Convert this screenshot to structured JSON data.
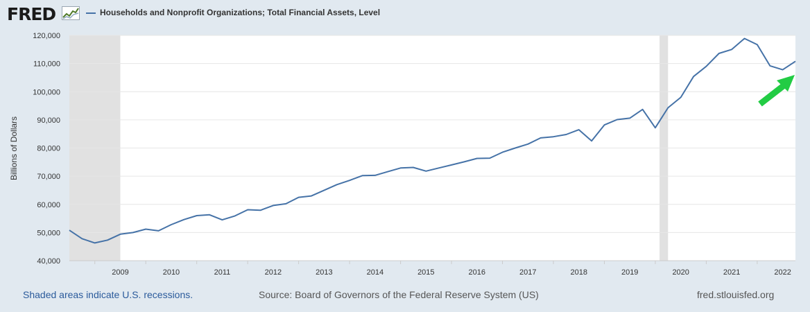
{
  "header": {
    "logo_text": "FRED",
    "logo_icon": "fred-line-graph-icon",
    "series_title": "Households and Nonprofit Organizations; Total Financial Assets, Level"
  },
  "footer": {
    "recession_note": "Shaded areas indicate U.S. recessions.",
    "source": "Source: Board of Governors of the Federal Reserve System (US)",
    "site": "fred.stlouisfed.org"
  },
  "annotation": {
    "icon": "green-arrow-icon",
    "color": "#22cc44"
  },
  "chart_data": {
    "type": "line",
    "title": "Households and Nonprofit Organizations; Total Financial Assets, Level",
    "ylabel": "Billions of Dollars",
    "xlabel": "",
    "ylim": [
      40000,
      120000
    ],
    "y_ticks": [
      40000,
      50000,
      60000,
      70000,
      80000,
      90000,
      100000,
      110000,
      120000
    ],
    "y_tick_labels": [
      "40,000",
      "50,000",
      "60,000",
      "70,000",
      "80,000",
      "90,000",
      "100,000",
      "110,000",
      "120,000"
    ],
    "x_ticks": [
      2009,
      2010,
      2011,
      2012,
      2013,
      2014,
      2015,
      2016,
      2017,
      2018,
      2019,
      2020,
      2021,
      2022
    ],
    "x_tick_labels": [
      "2009",
      "2010",
      "2011",
      "2012",
      "2013",
      "2014",
      "2015",
      "2016",
      "2017",
      "2018",
      "2019",
      "2020",
      "2021",
      "2022"
    ],
    "xlim": [
      2008.5,
      2022.75
    ],
    "grid": true,
    "line_color": "#4572a7",
    "recession_color": "#e1e1e1",
    "recessions": [
      [
        2008.5,
        2009.5
      ],
      [
        2020.0833,
        2020.25
      ]
    ],
    "series": [
      {
        "x": [
          "2008-07-01",
          "2008-10-01",
          "2009-01-01",
          "2009-04-01",
          "2009-07-01",
          "2009-10-01",
          "2010-01-01",
          "2010-04-01",
          "2010-07-01",
          "2010-10-01",
          "2011-01-01",
          "2011-04-01",
          "2011-07-01",
          "2011-10-01",
          "2012-01-01",
          "2012-04-01",
          "2012-07-01",
          "2012-10-01",
          "2013-01-01",
          "2013-04-01",
          "2013-07-01",
          "2013-10-01",
          "2014-01-01",
          "2014-04-01",
          "2014-07-01",
          "2014-10-01",
          "2015-01-01",
          "2015-04-01",
          "2015-07-01",
          "2015-10-01",
          "2016-01-01",
          "2016-04-01",
          "2016-07-01",
          "2016-10-01",
          "2017-01-01",
          "2017-04-01",
          "2017-07-01",
          "2017-10-01",
          "2018-01-01",
          "2018-04-01",
          "2018-07-01",
          "2018-10-01",
          "2019-01-01",
          "2019-04-01",
          "2019-07-01",
          "2019-10-01",
          "2020-01-01",
          "2020-04-01",
          "2020-07-01",
          "2020-10-01",
          "2021-01-01",
          "2021-04-01",
          "2021-07-01",
          "2021-10-01",
          "2022-01-01",
          "2022-04-01",
          "2022-07-01",
          "2022-10-01"
        ],
        "values": [
          50800,
          47800,
          46300,
          47300,
          49400,
          50000,
          51200,
          50600,
          52800,
          54600,
          56000,
          56300,
          54500,
          55900,
          58100,
          57900,
          59600,
          60200,
          62500,
          63000,
          65000,
          67000,
          68500,
          70200,
          70300,
          71600,
          72900,
          73100,
          71800,
          72900,
          74000,
          75100,
          76300,
          76400,
          78500,
          80000,
          81400,
          83600,
          84000,
          84800,
          86500,
          82500,
          88200,
          90100,
          90600,
          93700,
          87200,
          94300,
          98000,
          105400,
          109000,
          113600,
          115000,
          118900,
          116700,
          109200,
          107800,
          110800
        ]
      }
    ]
  }
}
